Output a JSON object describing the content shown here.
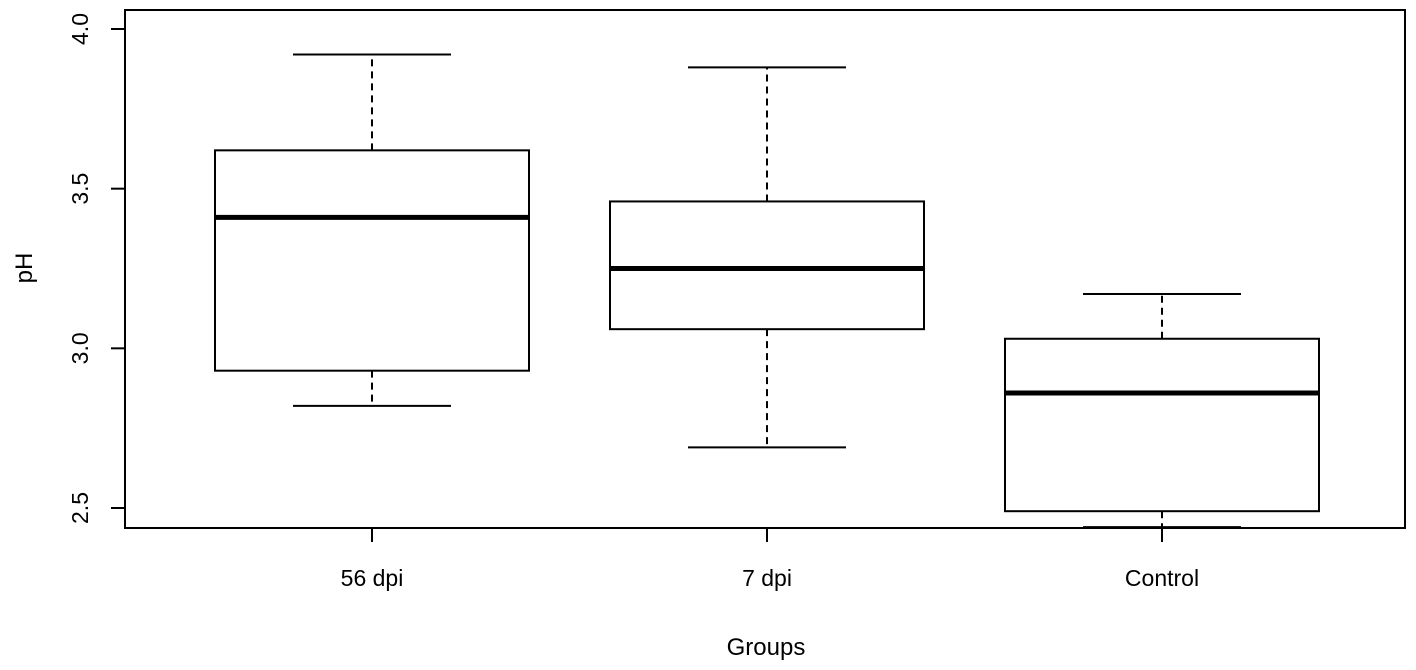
{
  "chart_data": {
    "type": "boxplot",
    "title": "",
    "xlabel": "Groups",
    "ylabel": "pH",
    "categories": [
      "56 dpi",
      "7 dpi",
      "Control"
    ],
    "boxes": [
      {
        "label": "56 dpi",
        "whisker_low": 2.82,
        "q1": 2.93,
        "median": 3.41,
        "q3": 3.62,
        "whisker_high": 3.92
      },
      {
        "label": "7 dpi",
        "whisker_low": 2.69,
        "q1": 3.06,
        "median": 3.25,
        "q3": 3.46,
        "whisker_high": 3.88
      },
      {
        "label": "Control",
        "whisker_low": 2.44,
        "q1": 2.49,
        "median": 2.86,
        "q3": 3.03,
        "whisker_high": 3.17
      }
    ],
    "yticks": [
      "2.5",
      "3.0",
      "3.5",
      "4.0"
    ],
    "ylim": [
      2.44,
      4.06
    ],
    "grid": false,
    "legend": "none",
    "colors": {
      "box_fill": "#ffffff",
      "stroke": "#000000"
    }
  }
}
